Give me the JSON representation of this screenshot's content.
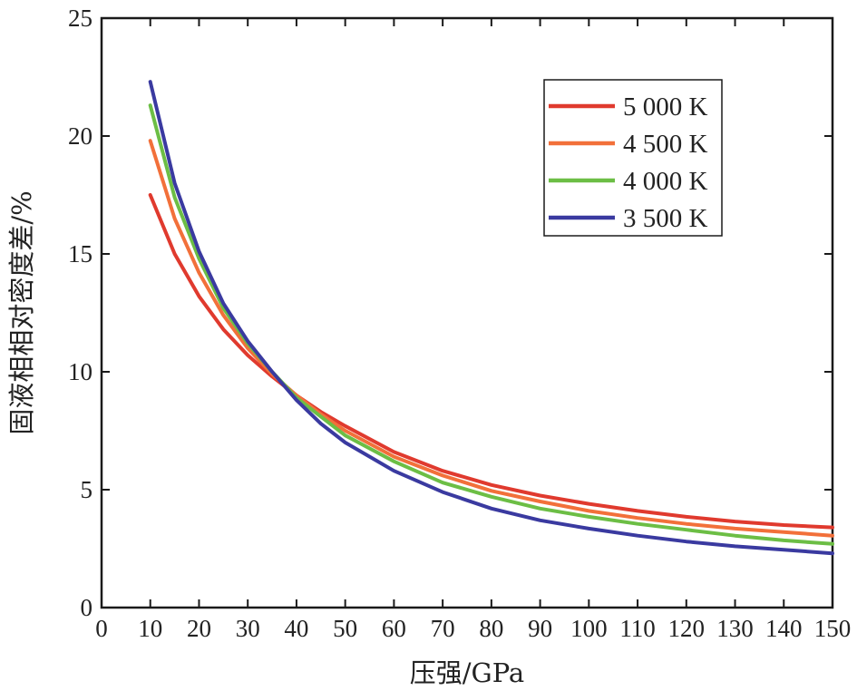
{
  "chart_data": {
    "type": "line",
    "title": "",
    "xlabel": "压强/GPa",
    "ylabel": "固液相相对密度差/%",
    "xlim": [
      0,
      150
    ],
    "ylim": [
      0,
      25
    ],
    "x_ticks": [
      0,
      10,
      20,
      30,
      40,
      50,
      60,
      70,
      80,
      90,
      100,
      110,
      120,
      130,
      140,
      150
    ],
    "y_ticks": [
      0,
      5,
      10,
      15,
      20,
      25
    ],
    "grid": false,
    "legend": {
      "placement": "top-right"
    },
    "x": [
      10,
      15,
      20,
      25,
      30,
      35,
      40,
      45,
      50,
      60,
      70,
      80,
      90,
      100,
      110,
      120,
      130,
      140,
      150
    ],
    "series": [
      {
        "name": "5 000 K",
        "color": "#e03a2e",
        "values": [
          17.5,
          15.0,
          13.2,
          11.8,
          10.7,
          9.8,
          9.0,
          8.3,
          7.7,
          6.6,
          5.8,
          5.2,
          4.75,
          4.4,
          4.1,
          3.85,
          3.65,
          3.5,
          3.4
        ]
      },
      {
        "name": "4 500 K",
        "color": "#f2703a",
        "values": [
          19.8,
          16.5,
          14.2,
          12.4,
          11.0,
          9.9,
          9.0,
          8.2,
          7.5,
          6.4,
          5.6,
          4.95,
          4.5,
          4.1,
          3.8,
          3.55,
          3.35,
          3.2,
          3.05
        ]
      },
      {
        "name": "4 000 K",
        "color": "#6cbe45",
        "values": [
          21.3,
          17.4,
          14.8,
          12.7,
          11.2,
          10.0,
          8.9,
          8.1,
          7.3,
          6.2,
          5.3,
          4.7,
          4.2,
          3.85,
          3.55,
          3.3,
          3.05,
          2.85,
          2.7
        ]
      },
      {
        "name": "3 500 K",
        "color": "#3a3aa0",
        "values": [
          22.3,
          18.0,
          15.1,
          12.9,
          11.3,
          10.0,
          8.8,
          7.8,
          7.0,
          5.8,
          4.9,
          4.2,
          3.7,
          3.35,
          3.05,
          2.8,
          2.6,
          2.45,
          2.3
        ]
      }
    ]
  }
}
